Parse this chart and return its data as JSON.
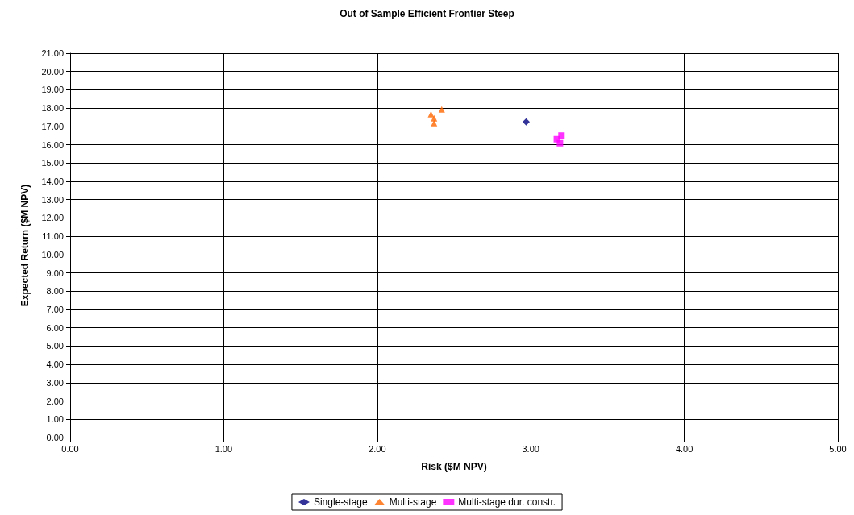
{
  "chart_data": {
    "type": "scatter",
    "title": "Out of Sample Efficient Frontier Steep",
    "xlabel": "Risk ($M NPV)",
    "ylabel": "Expected Return ($M NPV)",
    "xlim": [
      0,
      5
    ],
    "xticks": [
      {
        "value": 0,
        "label": "0.00"
      },
      {
        "value": 1,
        "label": "1.00"
      },
      {
        "value": 2,
        "label": "2.00"
      },
      {
        "value": 3,
        "label": "3.00"
      },
      {
        "value": 4,
        "label": "4.00"
      },
      {
        "value": 5,
        "label": "5.00"
      }
    ],
    "ylim": [
      0,
      21
    ],
    "yticks": [
      {
        "value": 0,
        "label": "0.00"
      },
      {
        "value": 1,
        "label": "1.00"
      },
      {
        "value": 2,
        "label": "2.00"
      },
      {
        "value": 3,
        "label": "3.00"
      },
      {
        "value": 4,
        "label": "4.00"
      },
      {
        "value": 5,
        "label": "5.00"
      },
      {
        "value": 6,
        "label": "6.00"
      },
      {
        "value": 7,
        "label": "7.00"
      },
      {
        "value": 8,
        "label": "8.00"
      },
      {
        "value": 9,
        "label": "9.00"
      },
      {
        "value": 10,
        "label": "10.00"
      },
      {
        "value": 11,
        "label": "11.00"
      },
      {
        "value": 12,
        "label": "12.00"
      },
      {
        "value": 13,
        "label": "13.00"
      },
      {
        "value": 14,
        "label": "14.00"
      },
      {
        "value": 15,
        "label": "15.00"
      },
      {
        "value": 16,
        "label": "16.00"
      },
      {
        "value": 17,
        "label": "17.00"
      },
      {
        "value": 18,
        "label": "18.00"
      },
      {
        "value": 19,
        "label": "19.00"
      },
      {
        "value": 20,
        "label": "20.00"
      },
      {
        "value": 21,
        "label": "21.00"
      }
    ],
    "grid": true,
    "legend": "bottom",
    "series": [
      {
        "name": "Single-stage",
        "color": "#000080",
        "marker": "diamond",
        "x": [
          2.97
        ],
        "values": [
          17.25
        ]
      },
      {
        "name": "Multi-stage",
        "color": "#ff6600",
        "marker": "triangle",
        "x": [
          2.42,
          2.35,
          2.37,
          2.37
        ],
        "values": [
          17.93,
          17.66,
          17.44,
          17.18
        ]
      },
      {
        "name": "Multi-stage dur. constr.",
        "color": "#ff00ff",
        "marker": "square",
        "x": [
          3.2,
          3.17,
          3.19
        ],
        "values": [
          16.5,
          16.3,
          16.08
        ]
      }
    ]
  }
}
